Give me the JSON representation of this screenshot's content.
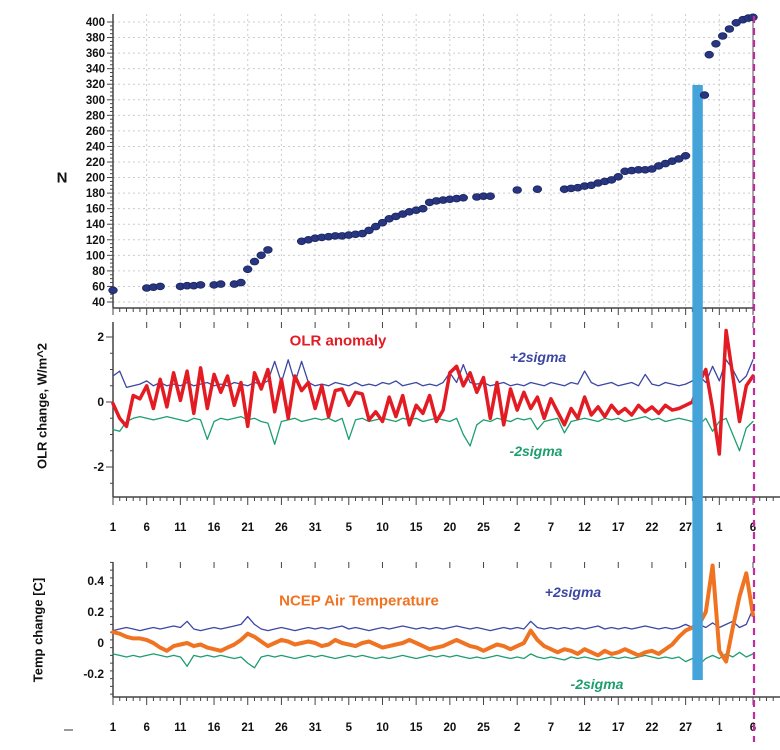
{
  "figure": {
    "colors": {
      "scatter": "#283580",
      "red": "#e31b23",
      "sigma_blue": "#3c47a3",
      "sigma_green": "#1d9e6e",
      "orange": "#f07322",
      "event_bar": "#44a4da",
      "end_line": "#c02c9c",
      "grid": "#cccccc",
      "axis": "#444444",
      "tick_text": "#111111"
    },
    "markers": {
      "event_bar": {
        "day_start": 87.0,
        "day_end": 88.55
      },
      "end_line": {
        "day": 96,
        "style": "dashed"
      }
    }
  },
  "x_axis": {
    "tick_labels": [
      "1",
      "6",
      "11",
      "16",
      "21",
      "26",
      "31",
      "5",
      "10",
      "15",
      "20",
      "25",
      "2",
      "7",
      "12",
      "17",
      "22",
      "27",
      "1",
      "6"
    ],
    "tick_days": [
      1,
      6,
      11,
      16,
      21,
      26,
      31,
      36,
      41,
      46,
      51,
      56,
      61,
      66,
      71,
      76,
      81,
      86,
      91,
      96
    ],
    "minor_step_days": 1,
    "total_days": 96
  },
  "chart_data": [
    {
      "type": "scatter",
      "ylabel": "N",
      "ylim": [
        40,
        400
      ],
      "ytick_step": 20,
      "grid": true,
      "x_days": [
        1,
        6,
        7,
        8,
        11,
        12,
        13,
        14,
        16,
        17,
        19,
        20,
        21,
        22,
        23,
        24,
        29,
        30,
        31,
        32,
        33,
        34,
        35,
        36,
        37,
        38,
        39,
        40,
        41,
        42,
        43,
        44,
        45,
        46,
        47,
        48,
        49,
        50,
        51,
        52,
        53,
        55,
        56,
        57,
        61,
        64,
        68,
        69,
        70,
        71,
        72,
        73,
        74,
        75,
        76,
        77,
        78,
        79,
        80,
        81,
        82,
        83,
        84,
        85,
        86,
        88.8,
        89.5,
        90.5,
        91.5,
        92.5,
        93.5,
        94.5,
        95.3,
        96
      ],
      "values": [
        55,
        58,
        59,
        60,
        60,
        61,
        61,
        62,
        62,
        63,
        63,
        65,
        82,
        92,
        100,
        107,
        118,
        120,
        122,
        123,
        124,
        125,
        125,
        126,
        127,
        128,
        132,
        137,
        142,
        147,
        150,
        153,
        156,
        158,
        160,
        168,
        170,
        171,
        172,
        173,
        174,
        175,
        176,
        176,
        184,
        185,
        185,
        186,
        187,
        189,
        190,
        193,
        195,
        197,
        201,
        208,
        209,
        210,
        210,
        211,
        215,
        218,
        221,
        224,
        228,
        306,
        358,
        372,
        382,
        391,
        399,
        403,
        405,
        406
      ]
    },
    {
      "type": "line",
      "title": "OLR anomaly",
      "ylabel": "OLR change, W/m^2",
      "yticks": [
        "2",
        "0",
        "-2"
      ],
      "ytick_values": [
        2,
        0,
        -2
      ],
      "ylim": [
        -2.9,
        2.5
      ],
      "grid": false,
      "series": [
        {
          "name": "OLR anomaly",
          "color_key": "red",
          "width": 3.5,
          "values": [
            -0.05,
            -0.5,
            -0.75,
            0.2,
            0.1,
            0.5,
            -0.2,
            0.7,
            -0.15,
            0.9,
            0.05,
            0.95,
            -0.35,
            1.05,
            -0.2,
            0.85,
            0.3,
            0.8,
            -0.1,
            0.6,
            -0.75,
            0.9,
            0.4,
            1.0,
            -0.3,
            0.7,
            -0.5,
            0.8,
            0.35,
            0.6,
            -0.2,
            0.5,
            -0.45,
            0.35,
            0.4,
            -0.1,
            0.3,
            0.25,
            -0.55,
            -0.3,
            -0.6,
            0.15,
            -0.45,
            0.2,
            -0.7,
            -0.1,
            -0.35,
            0.2,
            -0.6,
            -0.25,
            0.9,
            1.1,
            0.5,
            0.9,
            0.3,
            0.75,
            -0.5,
            0.6,
            -0.7,
            0.4,
            -0.25,
            0.3,
            -0.2,
            0.15,
            -0.5,
            0.1,
            -0.3,
            -0.7,
            -0.2,
            -0.5,
            0.15,
            -0.4,
            -0.15,
            -0.45,
            -0.1,
            -0.35,
            -0.2,
            -0.4,
            -0.1,
            -0.3,
            -0.15,
            -0.35,
            -0.1,
            -0.25,
            -0.2,
            -0.1,
            0.0,
            0.6,
            1.0,
            -0.2,
            -1.6,
            2.2,
            0.8,
            -0.6,
            0.5,
            0.8
          ]
        },
        {
          "name": "+2sigma",
          "color_key": "sigma_blue",
          "width": 1.3,
          "values": [
            0.8,
            0.95,
            0.45,
            0.5,
            0.55,
            0.65,
            0.5,
            0.6,
            0.5,
            0.55,
            0.5,
            0.6,
            0.5,
            0.55,
            0.6,
            0.5,
            0.55,
            0.5,
            0.6,
            0.55,
            0.5,
            0.6,
            0.55,
            0.65,
            1.25,
            0.6,
            1.3,
            0.6,
            1.25,
            0.6,
            0.5,
            0.55,
            0.5,
            0.6,
            0.55,
            0.5,
            0.6,
            0.5,
            0.55,
            0.5,
            0.6,
            0.55,
            0.65,
            0.5,
            0.55,
            0.6,
            0.5,
            0.55,
            0.5,
            0.6,
            0.9,
            0.6,
            1.15,
            0.6,
            0.55,
            0.6,
            0.5,
            0.55,
            0.6,
            0.5,
            0.55,
            0.5,
            0.6,
            0.55,
            0.5,
            0.6,
            0.55,
            0.5,
            0.6,
            0.55,
            0.95,
            0.6,
            0.5,
            0.55,
            0.6,
            0.5,
            0.55,
            0.6,
            0.5,
            0.85,
            0.55,
            0.5,
            0.6,
            0.55,
            0.5,
            0.55,
            0.65,
            0.8,
            0.6,
            1.1,
            0.65,
            1.3,
            1.0,
            0.6,
            0.8,
            1.3
          ]
        },
        {
          "name": "-2sigma",
          "color_key": "sigma_green",
          "width": 1.3,
          "values": [
            -0.85,
            -0.9,
            -0.6,
            -0.5,
            -0.45,
            -0.5,
            -0.55,
            -0.5,
            -0.45,
            -0.5,
            -0.55,
            -0.6,
            -0.5,
            -0.55,
            -1.15,
            -0.6,
            -0.5,
            -0.55,
            -0.5,
            -0.45,
            -0.55,
            -0.5,
            -0.6,
            -0.65,
            -1.3,
            -0.6,
            -0.55,
            -0.5,
            -0.6,
            -0.55,
            -0.5,
            -0.55,
            -0.5,
            -0.6,
            -0.5,
            -1.15,
            -0.55,
            -0.5,
            -0.6,
            -0.55,
            -0.5,
            -0.55,
            -0.6,
            -0.5,
            -0.55,
            -0.5,
            -0.6,
            -0.55,
            -0.5,
            -0.55,
            -0.6,
            -0.5,
            -1.0,
            -1.35,
            -0.7,
            -0.55,
            -0.6,
            -0.5,
            -0.55,
            -0.6,
            -0.5,
            -0.55,
            -0.5,
            -0.85,
            -0.6,
            -0.55,
            -0.5,
            -0.95,
            -0.6,
            -0.55,
            -0.5,
            -0.55,
            -0.6,
            -0.5,
            -0.55,
            -0.5,
            -0.6,
            -0.55,
            -0.5,
            -0.45,
            -0.55,
            -0.5,
            -0.6,
            -0.55,
            -0.5,
            -0.55,
            -0.6,
            -0.7,
            -0.5,
            -0.9,
            -0.6,
            -0.5,
            -1.0,
            -1.5,
            -0.8,
            -0.6
          ]
        }
      ]
    },
    {
      "type": "line",
      "title": "NCEP Air Temperature",
      "ylabel": "Temp change [C]",
      "yticks": [
        "0.4",
        "0.2",
        "0",
        "-0.2"
      ],
      "ytick_values": [
        0.4,
        0.2,
        0,
        -0.2
      ],
      "ylim": [
        -0.35,
        0.52
      ],
      "grid": false,
      "series": [
        {
          "name": "NCEP Air Temperature",
          "color_key": "orange",
          "width": 4,
          "values": [
            0.07,
            0.06,
            0.04,
            0.03,
            0.03,
            0.02,
            0.0,
            -0.03,
            -0.05,
            -0.02,
            -0.01,
            0.0,
            -0.02,
            -0.01,
            -0.03,
            -0.04,
            -0.05,
            -0.03,
            -0.01,
            0.02,
            0.06,
            0.04,
            0.01,
            -0.02,
            0.0,
            0.02,
            0.01,
            -0.01,
            0.0,
            0.01,
            0.0,
            -0.02,
            -0.01,
            0.02,
            0.0,
            -0.01,
            -0.02,
            0.0,
            0.01,
            -0.01,
            -0.03,
            -0.02,
            -0.01,
            0.0,
            0.02,
            0.0,
            -0.02,
            -0.04,
            -0.03,
            -0.02,
            0.0,
            0.02,
            0.0,
            -0.02,
            -0.03,
            -0.05,
            -0.03,
            -0.01,
            -0.02,
            -0.04,
            -0.02,
            0.0,
            0.08,
            0.02,
            -0.02,
            -0.04,
            -0.06,
            -0.04,
            -0.05,
            -0.07,
            -0.04,
            -0.06,
            -0.08,
            -0.05,
            -0.07,
            -0.06,
            -0.04,
            -0.06,
            -0.08,
            -0.06,
            -0.05,
            -0.07,
            -0.04,
            -0.01,
            0.04,
            0.08,
            0.1,
            0.12,
            0.2,
            0.5,
            -0.05,
            -0.12,
            0.1,
            0.3,
            0.45,
            0.18
          ]
        },
        {
          "name": "+2sigma",
          "color_key": "sigma_blue",
          "width": 1.3,
          "values": [
            0.08,
            0.09,
            0.1,
            0.09,
            0.08,
            0.09,
            0.1,
            0.09,
            0.1,
            0.11,
            0.1,
            0.14,
            0.09,
            0.08,
            0.09,
            0.1,
            0.09,
            0.1,
            0.11,
            0.12,
            0.17,
            0.12,
            0.09,
            0.08,
            0.09,
            0.1,
            0.09,
            0.08,
            0.09,
            0.1,
            0.09,
            0.1,
            0.09,
            0.1,
            0.11,
            0.09,
            0.1,
            0.09,
            0.08,
            0.09,
            0.1,
            0.09,
            0.1,
            0.11,
            0.1,
            0.09,
            0.1,
            0.09,
            0.1,
            0.09,
            0.1,
            0.11,
            0.1,
            0.09,
            0.1,
            0.09,
            0.08,
            0.09,
            0.1,
            0.09,
            0.1,
            0.09,
            0.14,
            0.1,
            0.09,
            0.1,
            0.09,
            0.1,
            0.09,
            0.1,
            0.09,
            0.1,
            0.11,
            0.09,
            0.1,
            0.09,
            0.1,
            0.09,
            0.1,
            0.11,
            0.1,
            0.09,
            0.1,
            0.09,
            0.1,
            0.12,
            0.1,
            0.12,
            0.1,
            0.13,
            0.1,
            0.12,
            0.14,
            0.1,
            0.12,
            0.22
          ]
        },
        {
          "name": "-2sigma",
          "color_key": "sigma_green",
          "width": 1.3,
          "values": [
            -0.07,
            -0.08,
            -0.09,
            -0.08,
            -0.09,
            -0.08,
            -0.07,
            -0.08,
            -0.09,
            -0.08,
            -0.09,
            -0.15,
            -0.08,
            -0.09,
            -0.08,
            -0.09,
            -0.08,
            -0.09,
            -0.1,
            -0.09,
            -0.13,
            -0.16,
            -0.09,
            -0.08,
            -0.09,
            -0.08,
            -0.09,
            -0.1,
            -0.09,
            -0.08,
            -0.09,
            -0.08,
            -0.09,
            -0.1,
            -0.09,
            -0.08,
            -0.09,
            -0.08,
            -0.09,
            -0.1,
            -0.09,
            -0.1,
            -0.09,
            -0.08,
            -0.09,
            -0.1,
            -0.09,
            -0.08,
            -0.09,
            -0.08,
            -0.09,
            -0.08,
            -0.09,
            -0.1,
            -0.09,
            -0.1,
            -0.09,
            -0.08,
            -0.09,
            -0.1,
            -0.09,
            -0.1,
            -0.07,
            -0.09,
            -0.1,
            -0.09,
            -0.1,
            -0.11,
            -0.09,
            -0.1,
            -0.09,
            -0.1,
            -0.11,
            -0.1,
            -0.09,
            -0.1,
            -0.09,
            -0.1,
            -0.09,
            -0.08,
            -0.09,
            -0.1,
            -0.09,
            -0.1,
            -0.09,
            -0.12,
            -0.1,
            -0.14,
            -0.1,
            -0.08,
            -0.1,
            -0.07,
            -0.09,
            -0.06,
            -0.09,
            -0.07
          ]
        }
      ]
    }
  ]
}
